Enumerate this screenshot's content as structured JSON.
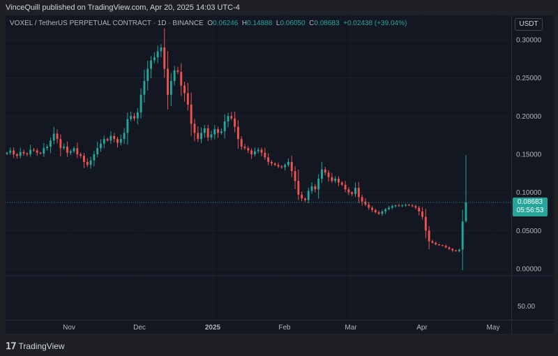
{
  "header": {
    "text": "VinceQuill published on TradingView.com, Apr 20, 2025 14:03 UTC-4"
  },
  "legend": {
    "symbol": "VOXEL / TetherUS PERPETUAL CONTRACT · 1D · BINANCE",
    "o_label": "O",
    "o": "0.06246",
    "h_label": "H",
    "h": "0.14888",
    "l_label": "L",
    "l": "0.06050",
    "c_label": "C",
    "c": "0.08683",
    "change": "+0.02438 (+39.04%)"
  },
  "currency_button": "USDT",
  "price_tag": {
    "price": "0.08683",
    "countdown": "05:56:53"
  },
  "volume_axis_label": "50.00",
  "footer_logo": "TradingView",
  "colors": {
    "up": "#26a69a",
    "down": "#ef5350",
    "background": "#131722",
    "grid": "#2a2e39"
  },
  "chart_data": {
    "type": "candlestick",
    "y_ticks": [
      "0.30000",
      "0.25000",
      "0.20000",
      "0.15000",
      "0.10000",
      "0.05000",
      "0.00000"
    ],
    "y_tick_values": [
      0.3,
      0.25,
      0.2,
      0.15,
      0.1,
      0.05,
      0.0
    ],
    "x_ticks": [
      "Nov",
      "Dec",
      "2025",
      "Feb",
      "Mar",
      "Apr",
      "May"
    ],
    "ylim": [
      0,
      0.3
    ],
    "last_price": 0.08683,
    "close_series": [
      0.152,
      0.155,
      0.15,
      0.148,
      0.153,
      0.151,
      0.15,
      0.156,
      0.155,
      0.152,
      0.151,
      0.158,
      0.16,
      0.168,
      0.177,
      0.17,
      0.158,
      0.16,
      0.152,
      0.154,
      0.158,
      0.15,
      0.148,
      0.14,
      0.136,
      0.142,
      0.15,
      0.158,
      0.164,
      0.17,
      0.168,
      0.174,
      0.17,
      0.165,
      0.17,
      0.178,
      0.196,
      0.2,
      0.197,
      0.205,
      0.228,
      0.246,
      0.262,
      0.273,
      0.277,
      0.285,
      0.29,
      0.262,
      0.228,
      0.246,
      0.26,
      0.258,
      0.24,
      0.23,
      0.215,
      0.19,
      0.178,
      0.17,
      0.178,
      0.184,
      0.172,
      0.176,
      0.183,
      0.178,
      0.18,
      0.193,
      0.2,
      0.197,
      0.186,
      0.17,
      0.16,
      0.158,
      0.155,
      0.15,
      0.154,
      0.156,
      0.152,
      0.146,
      0.14,
      0.138,
      0.136,
      0.134,
      0.133,
      0.136,
      0.14,
      0.128,
      0.115,
      0.097,
      0.092,
      0.09,
      0.102,
      0.108,
      0.104,
      0.118,
      0.13,
      0.126,
      0.12,
      0.115,
      0.118,
      0.113,
      0.11,
      0.104,
      0.1,
      0.098,
      0.106,
      0.094,
      0.088,
      0.084,
      0.08,
      0.077,
      0.074,
      0.072,
      0.075,
      0.078,
      0.08,
      0.082,
      0.083,
      0.082,
      0.083,
      0.084,
      0.083,
      0.082,
      0.08,
      0.075,
      0.068,
      0.05,
      0.036,
      0.034,
      0.032,
      0.031,
      0.03,
      0.028,
      0.026,
      0.024,
      0.023,
      0.025,
      0.062,
      0.08683
    ],
    "last_candle": {
      "open": 0.06246,
      "high": 0.14888,
      "low": 0.0605,
      "close": 0.08683
    }
  }
}
